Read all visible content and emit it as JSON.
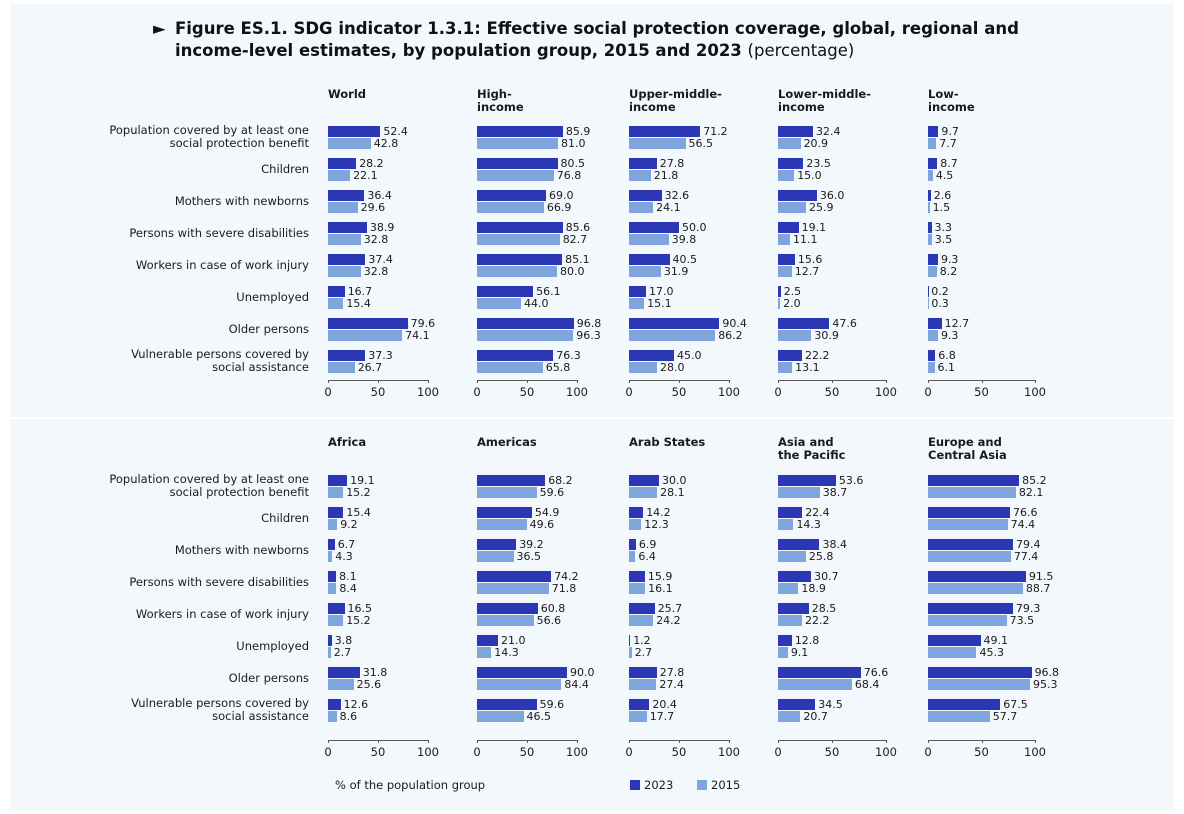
{
  "title": "Figure ES.1.  SDG indicator 1.3.1: Effective social protection coverage, global, regional and income-level estimates, by population group, 2015 and 2023",
  "title_suffix": "(percentage)",
  "xlabel": "% of the population group",
  "categories": [
    "Population covered by at least one social protection benefit",
    "Children",
    "Mothers with newborns",
    "Persons with severe disabilities",
    "Workers in case of work injury",
    "Unemployed",
    "Older persons",
    "Vulnerable persons covered by social assistance"
  ],
  "legend": [
    {
      "name": "2023",
      "color": "#2b37b5"
    },
    {
      "name": "2015",
      "color": "#7ea6dc"
    }
  ],
  "chart_data": [
    {
      "type": "barh",
      "title": "World",
      "xlim": [
        0,
        100
      ],
      "xticks": [
        0,
        50,
        100
      ],
      "series": [
        {
          "values": [
            52.4,
            28.2,
            36.4,
            38.9,
            37.4,
            16.7,
            79.6,
            37.3
          ],
          "value_labels": [
            "52.4",
            "28.2",
            "36.4",
            "38.9",
            "37.4",
            "16.7",
            "79.6",
            "37.3"
          ]
        },
        {
          "values": [
            42.8,
            22.1,
            29.6,
            32.8,
            32.8,
            15.4,
            74.1,
            26.7
          ],
          "value_labels": [
            "42.8",
            "22.1",
            "29.6",
            "32.8",
            "32.8",
            "15.4",
            "74.1",
            "26.7"
          ]
        }
      ]
    },
    {
      "type": "barh",
      "title": "High-income",
      "xlim": [
        0,
        100
      ],
      "xticks": [
        0,
        50,
        100
      ],
      "series": [
        {
          "values": [
            85.9,
            80.5,
            69.0,
            85.6,
            85.1,
            56.1,
            96.8,
            76.3
          ],
          "value_labels": [
            "85.9",
            "80.5",
            "69.0",
            "85.6",
            "85.1",
            "56.1",
            "96.8",
            "76.3"
          ]
        },
        {
          "values": [
            81.0,
            76.8,
            66.9,
            82.7,
            80.0,
            44.0,
            96.3,
            65.8
          ],
          "value_labels": [
            "81.0",
            "76.8",
            "66.9",
            "82.7",
            "80.0",
            "44.0",
            "96.3",
            "65.8"
          ]
        }
      ]
    },
    {
      "type": "barh",
      "title": "Upper-middle-income",
      "xlim": [
        0,
        100
      ],
      "xticks": [
        0,
        50,
        100
      ],
      "series": [
        {
          "values": [
            71.2,
            27.8,
            32.6,
            50.0,
            40.5,
            17.0,
            90.4,
            45.0
          ],
          "value_labels": [
            "71.2",
            "27.8",
            "32.6",
            "50.0",
            "40.5",
            "17.0",
            "90.4",
            "45.0"
          ]
        },
        {
          "values": [
            56.5,
            21.8,
            24.1,
            39.8,
            31.9,
            15.1,
            86.2,
            28.0
          ],
          "value_labels": [
            "56.5",
            "21.8",
            "24.1",
            "39.8",
            "31.9",
            "15.1",
            "86.2",
            "28.0"
          ]
        }
      ]
    },
    {
      "type": "barh",
      "title": "Lower-middle-income",
      "xlim": [
        0,
        100
      ],
      "xticks": [
        0,
        50,
        100
      ],
      "series": [
        {
          "values": [
            32.4,
            23.5,
            36.0,
            19.1,
            15.6,
            2.5,
            47.6,
            22.2
          ],
          "value_labels": [
            "32.4",
            "23.5",
            "36.0",
            "19.1",
            "15.6",
            "2.5",
            "47.6",
            "22.2"
          ]
        },
        {
          "values": [
            20.9,
            15.0,
            25.9,
            11.1,
            12.7,
            2.0,
            30.9,
            13.1
          ],
          "value_labels": [
            "20.9",
            "15.0",
            "25.9",
            "11.1",
            "12.7",
            "2.0",
            "30.9",
            "13.1"
          ]
        }
      ]
    },
    {
      "type": "barh",
      "title": "Low-income",
      "xlim": [
        0,
        100
      ],
      "xticks": [
        0,
        50,
        100
      ],
      "series": [
        {
          "values": [
            9.7,
            8.7,
            2.6,
            3.3,
            9.3,
            0.2,
            12.7,
            6.8
          ],
          "value_labels": [
            "9.7",
            "8.7",
            "2.6",
            "3.3",
            "9.3",
            "0.2",
            "12.7",
            "6.8"
          ]
        },
        {
          "values": [
            7.7,
            4.5,
            1.5,
            3.5,
            8.2,
            0.3,
            9.3,
            6.1
          ],
          "value_labels": [
            "7.7",
            "4.5",
            "1.5",
            "3.5",
            "8.2",
            "0.3",
            "9.3",
            "6.1"
          ]
        }
      ]
    },
    {
      "type": "barh",
      "title": "Africa",
      "xlim": [
        0,
        100
      ],
      "xticks": [
        0,
        50,
        100
      ],
      "series": [
        {
          "values": [
            19.1,
            15.4,
            6.7,
            8.1,
            16.5,
            3.8,
            31.8,
            12.6
          ],
          "value_labels": [
            "19.1",
            "15.4",
            "6.7",
            "8.1",
            "16.5",
            "3.8",
            "31.8",
            "12.6"
          ]
        },
        {
          "values": [
            15.2,
            9.2,
            4.3,
            8.4,
            15.2,
            2.7,
            25.6,
            8.6
          ],
          "value_labels": [
            "15.2",
            "9.2",
            "4.3",
            "8.4",
            "15.2",
            "2.7",
            "25.6",
            "8.6"
          ]
        }
      ]
    },
    {
      "type": "barh",
      "title": "Americas",
      "xlim": [
        0,
        100
      ],
      "xticks": [
        0,
        50,
        100
      ],
      "series": [
        {
          "values": [
            68.2,
            54.9,
            39.2,
            74.2,
            60.8,
            21.0,
            90.0,
            59.6
          ],
          "value_labels": [
            "68.2",
            "54.9",
            "39.2",
            "74.2",
            "60.8",
            "21.0",
            "90.0",
            "59.6"
          ]
        },
        {
          "values": [
            59.6,
            49.6,
            36.5,
            71.8,
            56.6,
            14.3,
            84.4,
            46.5
          ],
          "value_labels": [
            "59.6",
            "49.6",
            "36.5",
            "71.8",
            "56.6",
            "14.3",
            "84.4",
            "46.5"
          ]
        }
      ]
    },
    {
      "type": "barh",
      "title": "Arab States",
      "xlim": [
        0,
        100
      ],
      "xticks": [
        0,
        50,
        100
      ],
      "series": [
        {
          "values": [
            30.0,
            14.2,
            6.9,
            15.9,
            25.7,
            1.2,
            27.8,
            20.4
          ],
          "value_labels": [
            "30.0",
            "14.2",
            "6.9",
            "15.9",
            "25.7",
            "1.2",
            "27.8",
            "20.4"
          ]
        },
        {
          "values": [
            28.1,
            12.3,
            6.4,
            16.1,
            24.2,
            2.7,
            27.4,
            17.7
          ],
          "value_labels": [
            "28.1",
            "12.3",
            "6.4",
            "16.1",
            "24.2",
            "2.7",
            "27.4",
            "17.7"
          ]
        }
      ]
    },
    {
      "type": "barh",
      "title": "Asia and the Pacific",
      "xlim": [
        0,
        100
      ],
      "xticks": [
        0,
        50,
        100
      ],
      "series": [
        {
          "values": [
            53.6,
            22.4,
            38.4,
            30.7,
            28.5,
            12.8,
            76.6,
            34.5
          ],
          "value_labels": [
            "53.6",
            "22.4",
            "38.4",
            "30.7",
            "28.5",
            "12.8",
            "76.6",
            "34.5"
          ]
        },
        {
          "values": [
            38.7,
            14.3,
            25.8,
            18.9,
            22.2,
            9.1,
            68.4,
            20.7
          ],
          "value_labels": [
            "38.7",
            "14.3",
            "25.8",
            "18.9",
            "22.2",
            "9.1",
            "68.4",
            "20.7"
          ]
        }
      ]
    },
    {
      "type": "barh",
      "title": "Europe and Central Asia",
      "xlim": [
        0,
        100
      ],
      "xticks": [
        0,
        50,
        100
      ],
      "series": [
        {
          "values": [
            85.2,
            76.6,
            79.4,
            91.5,
            79.3,
            49.1,
            96.8,
            67.5
          ],
          "value_labels": [
            "85.2",
            "76.6",
            "79.4",
            "91.5",
            "79.3",
            "49.1",
            "96.8",
            "67.5"
          ]
        },
        {
          "values": [
            82.1,
            74.4,
            77.4,
            88.7,
            73.5,
            45.3,
            95.3,
            57.7
          ],
          "value_labels": [
            "82.1",
            "74.4",
            "77.4",
            "88.7",
            "73.5",
            "45.3",
            "95.3",
            "57.7"
          ]
        }
      ]
    }
  ]
}
